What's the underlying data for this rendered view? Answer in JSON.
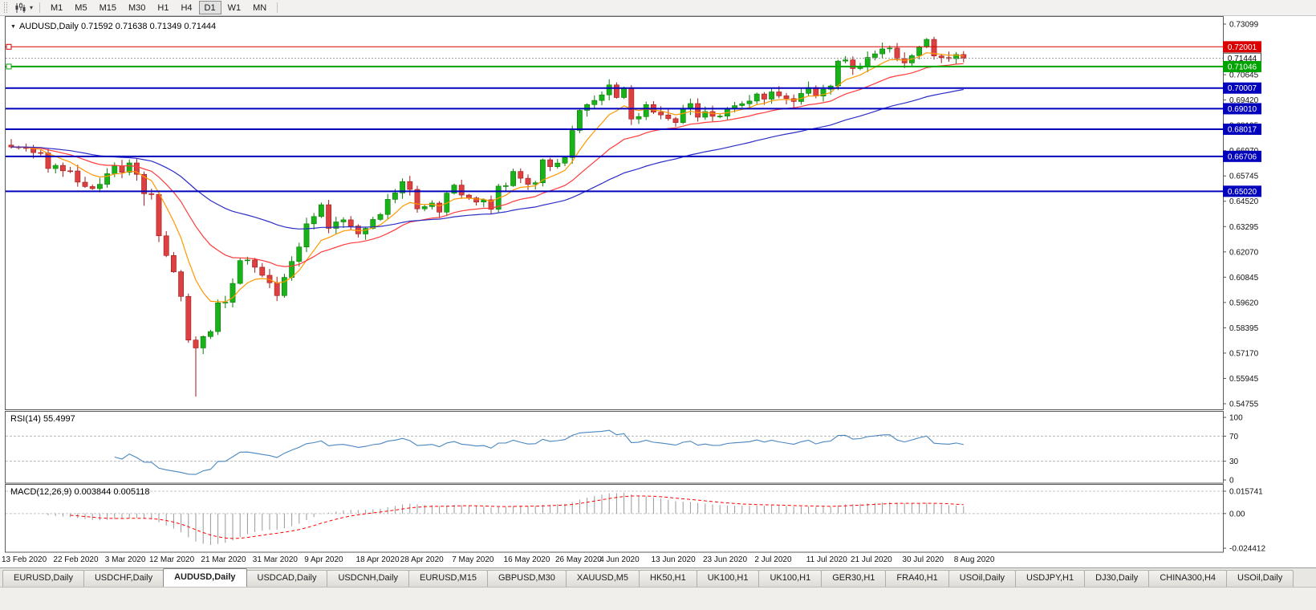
{
  "toolbar": {
    "dropdown_caret": "▾",
    "timeframes": [
      {
        "label": "M1",
        "active": false
      },
      {
        "label": "M5",
        "active": false
      },
      {
        "label": "M15",
        "active": false
      },
      {
        "label": "M30",
        "active": false
      },
      {
        "label": "H1",
        "active": false
      },
      {
        "label": "H4",
        "active": false
      },
      {
        "label": "D1",
        "active": true
      },
      {
        "label": "W1",
        "active": false
      },
      {
        "label": "MN",
        "active": false
      }
    ]
  },
  "main_chart": {
    "symbol": "AUDUSD",
    "timeframe": "Daily",
    "title": "AUDUSD,Daily 0.71592 0.71638 0.71349 0.71444",
    "ohlc": {
      "open": "0.71592",
      "high": "0.71638",
      "low": "0.71349",
      "close": "0.71444"
    },
    "axis_labels": [
      "0.73099",
      "0.71874",
      "0.70645",
      "0.69420",
      "0.68195",
      "0.66970",
      "0.65745",
      "0.64520",
      "0.63295",
      "0.62070",
      "0.60845",
      "0.59620",
      "0.58395",
      "0.57170",
      "0.55945",
      "0.54755"
    ],
    "price_top": 0.73099,
    "price_bottom": 0.54755,
    "up_color": "#19b219",
    "down_color": "#dc4040",
    "hlines": [
      {
        "price": 0.72001,
        "label": "0.72001",
        "line_color": "#dd0000",
        "box_color": "#dd0000",
        "text_color": "#ffffff",
        "thickness": 1,
        "style": "solid",
        "anchor": true,
        "current": false
      },
      {
        "price": 0.71444,
        "label": "0.71444",
        "line_color": "#999999",
        "box_color": "#ffffff",
        "text_color": "#000000",
        "thickness": 1,
        "style": "dotted",
        "anchor": false,
        "current": true
      },
      {
        "price": 0.71046,
        "label": "0.71046",
        "line_color": "#00a400",
        "box_color": "#00a400",
        "text_color": "#ffffff",
        "thickness": 2,
        "style": "solid",
        "anchor": true,
        "current": false
      },
      {
        "price": 0.70007,
        "label": "0.70007",
        "line_color": "#0202bd",
        "box_color": "#0202bd",
        "text_color": "#ffffff",
        "thickness": 2,
        "style": "solid",
        "anchor": false,
        "current": false
      },
      {
        "price": 0.6901,
        "label": "0.69010",
        "line_color": "#0202bd",
        "box_color": "#0202bd",
        "text_color": "#ffffff",
        "thickness": 2,
        "style": "solid",
        "anchor": false,
        "current": false
      },
      {
        "price": 0.68017,
        "label": "0.68017",
        "line_color": "#0202bd",
        "box_color": "#0202bd",
        "text_color": "#ffffff",
        "thickness": 2,
        "style": "solid",
        "anchor": false,
        "current": false
      },
      {
        "price": 0.66706,
        "label": "0.66706",
        "line_color": "#0202bd",
        "box_color": "#0202bd",
        "text_color": "#ffffff",
        "thickness": 2,
        "style": "solid",
        "anchor": false,
        "current": false
      },
      {
        "price": 0.6502,
        "label": "0.65020",
        "line_color": "#0202bd",
        "box_color": "#0202bd",
        "text_color": "#ffffff",
        "thickness": 2,
        "style": "solid",
        "anchor": false,
        "current": false
      }
    ],
    "moving_averages": [
      {
        "name": "fast",
        "type": "ema",
        "period": 8,
        "color": "#ff9800"
      },
      {
        "name": "medium",
        "type": "ema",
        "period": 21,
        "color": "#ff3b3b"
      },
      {
        "name": "slow",
        "type": "ema",
        "period": 50,
        "color": "#2d2dc8"
      }
    ]
  },
  "chart_data": {
    "type": "candlestick",
    "symbol": "AUDUSD",
    "timeframe": "Daily",
    "ylim": [
      0.54755,
      0.73099
    ],
    "first_open": 0.6725,
    "closes": [
      0.6716,
      0.6713,
      0.6712,
      0.6689,
      0.6687,
      0.6612,
      0.6627,
      0.6601,
      0.66,
      0.6546,
      0.6525,
      0.6515,
      0.6536,
      0.6587,
      0.6625,
      0.6594,
      0.6639,
      0.6584,
      0.649,
      0.6487,
      0.6287,
      0.6192,
      0.6113,
      0.5994,
      0.5783,
      0.5745,
      0.58,
      0.5824,
      0.5963,
      0.5966,
      0.6057,
      0.6167,
      0.617,
      0.6135,
      0.6096,
      0.606,
      0.5998,
      0.6086,
      0.6163,
      0.6233,
      0.6345,
      0.638,
      0.6437,
      0.6323,
      0.6354,
      0.6364,
      0.6334,
      0.6296,
      0.6323,
      0.6366,
      0.639,
      0.6463,
      0.6494,
      0.6549,
      0.6511,
      0.6417,
      0.6428,
      0.6445,
      0.6401,
      0.6493,
      0.6532,
      0.6484,
      0.647,
      0.645,
      0.6461,
      0.6415,
      0.6527,
      0.6529,
      0.6598,
      0.6565,
      0.6536,
      0.6543,
      0.6654,
      0.6621,
      0.6638,
      0.6665,
      0.6796,
      0.6893,
      0.6921,
      0.6941,
      0.6968,
      0.7016,
      0.6955,
      0.7,
      0.6851,
      0.6863,
      0.6921,
      0.6884,
      0.6871,
      0.6853,
      0.6834,
      0.6901,
      0.6926,
      0.686,
      0.6887,
      0.6864,
      0.6865,
      0.6903,
      0.6916,
      0.6925,
      0.6938,
      0.6972,
      0.6947,
      0.6982,
      0.6963,
      0.695,
      0.6936,
      0.6975,
      0.7003,
      0.6962,
      0.6995,
      0.7011,
      0.7131,
      0.7137,
      0.7095,
      0.7105,
      0.7149,
      0.7166,
      0.719,
      0.7194,
      0.7143,
      0.7122,
      0.7157,
      0.72,
      0.7236,
      0.7156,
      0.7148,
      0.7143,
      0.7163,
      0.71444
    ],
    "wick_overrides": {
      "18": {
        "low": 0.6432
      },
      "25": {
        "low": 0.551
      },
      "81": {
        "high": 0.7043
      },
      "124": {
        "high": 0.7243
      }
    }
  },
  "rsi": {
    "title": "RSI(14) 55.4997",
    "indicator": "RSI",
    "period": 14,
    "value": "55.4997",
    "line_color": "#4a86c0",
    "levels": [
      {
        "label": "100",
        "value": 100,
        "dashed": false
      },
      {
        "label": "70",
        "value": 70,
        "dashed": true
      },
      {
        "label": "30",
        "value": 30,
        "dashed": true
      },
      {
        "label": "0",
        "value": 0,
        "dashed": false
      }
    ]
  },
  "macd": {
    "title": "MACD(12,26,9) 0.003844 0.005118",
    "indicator": "MACD",
    "fast": 12,
    "slow": 26,
    "signal": 9,
    "macd_value": "0.003844",
    "signal_value": "0.005118",
    "hist_color": "#999999",
    "signal_color": "#ff0000",
    "scale": [
      {
        "label": "0.015741",
        "value": 0.015741
      },
      {
        "label": "0.00",
        "value": 0
      },
      {
        "label": "-0.024412",
        "value": -0.024412
      }
    ]
  },
  "date_axis": {
    "labels": [
      "13 Feb 2020",
      "22 Feb 2020",
      "3 Mar 2020",
      "12 Mar 2020",
      "21 Mar 2020",
      "31 Mar 2020",
      "9 Apr 2020",
      "18 Apr 2020",
      "28 Apr 2020",
      "7 May 2020",
      "16 May 2020",
      "26 May 2020",
      "4 Jun 2020",
      "13 Jun 2020",
      "23 Jun 2020",
      "2 Jul 2020",
      "11 Jul 2020",
      "21 Jul 2020",
      "30 Jul 2020",
      "8 Aug 2020"
    ]
  },
  "tabs": [
    {
      "label": "EURUSD,Daily",
      "active": false
    },
    {
      "label": "USDCHF,Daily",
      "active": false
    },
    {
      "label": "AUDUSD,Daily",
      "active": true
    },
    {
      "label": "USDCAD,Daily",
      "active": false
    },
    {
      "label": "USDCNH,Daily",
      "active": false
    },
    {
      "label": "EURUSD,M15",
      "active": false
    },
    {
      "label": "GBPUSD,M30",
      "active": false
    },
    {
      "label": "XAUUSD,M5",
      "active": false
    },
    {
      "label": "HK50,H1",
      "active": false
    },
    {
      "label": "UK100,H1",
      "active": false
    },
    {
      "label": "UK100,H1",
      "active": false
    },
    {
      "label": "GER30,H1",
      "active": false
    },
    {
      "label": "FRA40,H1",
      "active": false
    },
    {
      "label": "USOil,Daily",
      "active": false
    },
    {
      "label": "USDJPY,H1",
      "active": false
    },
    {
      "label": "DJ30,Daily",
      "active": false
    },
    {
      "label": "CHINA300,H4",
      "active": false
    },
    {
      "label": "USOil,Daily",
      "active": false
    }
  ]
}
